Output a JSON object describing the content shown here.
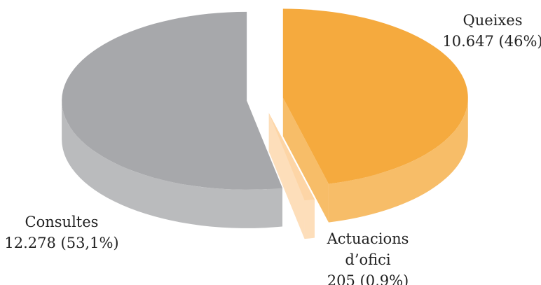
{
  "chart_data": {
    "type": "pie",
    "categories": [
      "Queixes",
      "Actuacions d’ofici",
      "Consultes"
    ],
    "values": [
      10647,
      205,
      12278
    ],
    "value_labels": [
      "10.647 (46%)",
      "205 (0,9%)",
      "12.278 (53,1%)"
    ],
    "colors": [
      "#f5aa3e",
      "#fdd5a6",
      "#a7a8ab"
    ]
  }
}
